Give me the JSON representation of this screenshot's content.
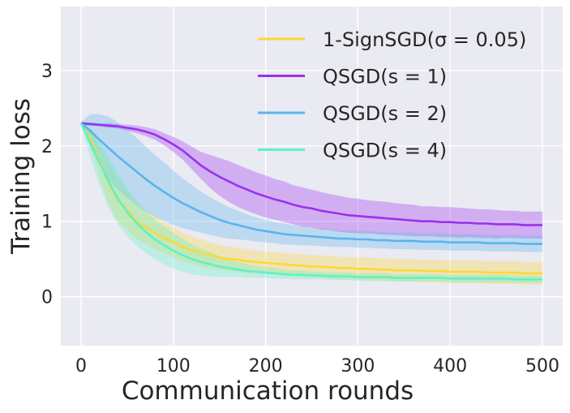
{
  "chart_data": {
    "type": "line",
    "title": "",
    "xlabel": "Communication rounds",
    "ylabel": "Training loss",
    "xlim": [
      -22,
      522
    ],
    "ylim": [
      -0.65,
      3.85
    ],
    "xticks": [
      0,
      100,
      200,
      300,
      400,
      500
    ],
    "yticks": [
      0,
      1,
      2,
      3
    ],
    "grid": true,
    "legend_position": "top-right",
    "x": [
      0,
      10,
      20,
      30,
      40,
      50,
      60,
      70,
      80,
      90,
      100,
      110,
      120,
      130,
      140,
      150,
      160,
      170,
      180,
      190,
      200,
      210,
      220,
      230,
      240,
      250,
      260,
      270,
      280,
      290,
      300,
      310,
      320,
      330,
      340,
      350,
      360,
      370,
      380,
      390,
      400,
      410,
      420,
      430,
      440,
      450,
      460,
      470,
      480,
      490,
      500
    ],
    "series": [
      {
        "name": "1-SignSGD(σ = 0.05)",
        "color": "#fdd835",
        "values": [
          2.3,
          2.1,
          1.8,
          1.5,
          1.28,
          1.15,
          1.0,
          0.92,
          0.85,
          0.78,
          0.72,
          0.66,
          0.62,
          0.58,
          0.55,
          0.52,
          0.5,
          0.49,
          0.47,
          0.46,
          0.45,
          0.44,
          0.43,
          0.42,
          0.41,
          0.4,
          0.4,
          0.39,
          0.38,
          0.38,
          0.37,
          0.37,
          0.36,
          0.36,
          0.35,
          0.35,
          0.35,
          0.34,
          0.34,
          0.34,
          0.33,
          0.33,
          0.33,
          0.33,
          0.32,
          0.32,
          0.32,
          0.32,
          0.31,
          0.31,
          0.31
        ],
        "spread": [
          0.02,
          0.1,
          0.22,
          0.28,
          0.28,
          0.26,
          0.24,
          0.22,
          0.22,
          0.2,
          0.2,
          0.19,
          0.18,
          0.18,
          0.17,
          0.17,
          0.16,
          0.16,
          0.16,
          0.15,
          0.15,
          0.15,
          0.15,
          0.15,
          0.15,
          0.15,
          0.15,
          0.15,
          0.15,
          0.15,
          0.15,
          0.15,
          0.15,
          0.15,
          0.15,
          0.15,
          0.15,
          0.15,
          0.15,
          0.15,
          0.15,
          0.15,
          0.15,
          0.15,
          0.15,
          0.15,
          0.15,
          0.15,
          0.15,
          0.15,
          0.15
        ]
      },
      {
        "name": "QSGD(s = 1)",
        "color": "#9b30f0",
        "values": [
          2.3,
          2.29,
          2.28,
          2.27,
          2.26,
          2.24,
          2.22,
          2.19,
          2.15,
          2.09,
          2.02,
          1.94,
          1.84,
          1.74,
          1.66,
          1.59,
          1.53,
          1.47,
          1.42,
          1.37,
          1.33,
          1.29,
          1.26,
          1.22,
          1.19,
          1.17,
          1.14,
          1.12,
          1.1,
          1.08,
          1.07,
          1.06,
          1.05,
          1.04,
          1.03,
          1.02,
          1.01,
          1.0,
          1.0,
          0.99,
          0.99,
          0.98,
          0.98,
          0.97,
          0.97,
          0.96,
          0.96,
          0.96,
          0.95,
          0.95,
          0.95
        ],
        "spread": [
          0.02,
          0.02,
          0.02,
          0.03,
          0.03,
          0.04,
          0.05,
          0.06,
          0.07,
          0.08,
          0.1,
          0.12,
          0.15,
          0.18,
          0.22,
          0.25,
          0.27,
          0.28,
          0.28,
          0.28,
          0.28,
          0.27,
          0.27,
          0.26,
          0.26,
          0.25,
          0.25,
          0.24,
          0.24,
          0.23,
          0.23,
          0.22,
          0.22,
          0.22,
          0.21,
          0.21,
          0.21,
          0.2,
          0.2,
          0.2,
          0.2,
          0.2,
          0.19,
          0.19,
          0.19,
          0.19,
          0.18,
          0.18,
          0.18,
          0.18,
          0.18
        ]
      },
      {
        "name": "QSGD(s = 2)",
        "color": "#5ab4ec",
        "values": [
          2.3,
          2.2,
          2.08,
          1.97,
          1.86,
          1.76,
          1.66,
          1.56,
          1.47,
          1.39,
          1.31,
          1.24,
          1.18,
          1.12,
          1.07,
          1.02,
          0.98,
          0.95,
          0.92,
          0.89,
          0.87,
          0.85,
          0.83,
          0.82,
          0.81,
          0.8,
          0.79,
          0.78,
          0.77,
          0.77,
          0.76,
          0.76,
          0.75,
          0.75,
          0.74,
          0.74,
          0.74,
          0.73,
          0.73,
          0.73,
          0.72,
          0.72,
          0.72,
          0.72,
          0.71,
          0.71,
          0.71,
          0.71,
          0.7,
          0.7,
          0.7
        ],
        "spread": [
          0.02,
          0.22,
          0.34,
          0.42,
          0.45,
          0.45,
          0.45,
          0.43,
          0.41,
          0.39,
          0.36,
          0.33,
          0.3,
          0.27,
          0.25,
          0.23,
          0.21,
          0.19,
          0.17,
          0.16,
          0.15,
          0.14,
          0.14,
          0.13,
          0.13,
          0.12,
          0.12,
          0.12,
          0.11,
          0.11,
          0.11,
          0.11,
          0.11,
          0.11,
          0.11,
          0.11,
          0.11,
          0.11,
          0.11,
          0.11,
          0.11,
          0.11,
          0.11,
          0.11,
          0.11,
          0.11,
          0.11,
          0.11,
          0.11,
          0.11,
          0.11
        ]
      },
      {
        "name": "QSGD(s = 4)",
        "color": "#5df2c6",
        "values": [
          2.3,
          2.05,
          1.78,
          1.52,
          1.3,
          1.12,
          0.98,
          0.86,
          0.76,
          0.68,
          0.61,
          0.55,
          0.5,
          0.46,
          0.43,
          0.4,
          0.38,
          0.36,
          0.34,
          0.33,
          0.32,
          0.31,
          0.3,
          0.29,
          0.29,
          0.28,
          0.28,
          0.27,
          0.27,
          0.27,
          0.26,
          0.26,
          0.26,
          0.26,
          0.25,
          0.25,
          0.25,
          0.25,
          0.25,
          0.25,
          0.24,
          0.24,
          0.24,
          0.24,
          0.24,
          0.24,
          0.24,
          0.23,
          0.23,
          0.23,
          0.23
        ],
        "spread": [
          0.02,
          0.2,
          0.3,
          0.34,
          0.34,
          0.32,
          0.3,
          0.28,
          0.26,
          0.25,
          0.24,
          0.22,
          0.2,
          0.18,
          0.16,
          0.14,
          0.12,
          0.1,
          0.09,
          0.08,
          0.07,
          0.07,
          0.06,
          0.06,
          0.06,
          0.05,
          0.05,
          0.05,
          0.05,
          0.05,
          0.05,
          0.05,
          0.05,
          0.05,
          0.05,
          0.05,
          0.05,
          0.05,
          0.05,
          0.05,
          0.05,
          0.05,
          0.05,
          0.05,
          0.05,
          0.05,
          0.05,
          0.05,
          0.05,
          0.05,
          0.05
        ]
      }
    ]
  }
}
